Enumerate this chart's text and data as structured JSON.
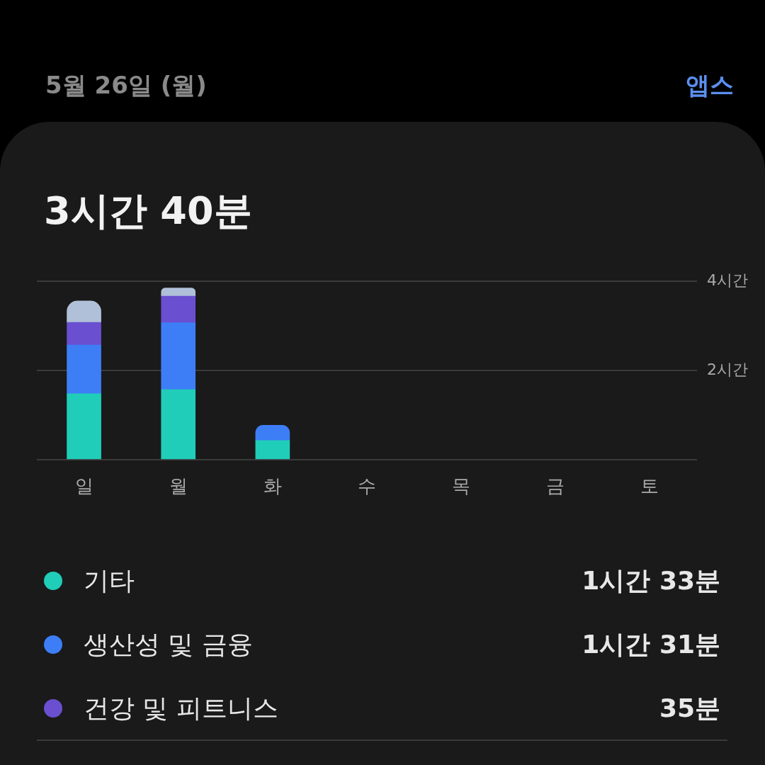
{
  "chart_data": {
    "type": "bar",
    "title": "3시간 40분",
    "subtitle": "5월 26일 (월)",
    "annotations": [
      "앱스",
      "1시간 33분",
      "1시간 31분",
      "35분"
    ],
    "categories": [
      "일",
      "월",
      "화",
      "수",
      "목",
      "금",
      "토"
    ],
    "stacked": true,
    "grid": "y",
    "legend": "bottom",
    "ylim": [
      0,
      4
    ],
    "yticks": [
      {
        "value": 0,
        "label": null
      },
      {
        "value": 2,
        "label": "2시간"
      },
      {
        "value": 4,
        "label": "4시간"
      }
    ],
    "series": [
      {
        "name": "기타",
        "color": "#20cdb8",
        "values": [
          1.48,
          1.57,
          0.43,
          null,
          null,
          null,
          null
        ]
      },
      {
        "name": "생산성 및 금융",
        "color": "#3d7ef7",
        "values": [
          1.09,
          1.5,
          0.34,
          null,
          null,
          null,
          null
        ]
      },
      {
        "name": "건강 및 피트니스",
        "color": "#6a4fd0",
        "values": [
          0.51,
          0.6,
          null,
          null,
          null,
          null,
          null
        ]
      },
      {
        "color": "#b0c0d8",
        "values": [
          0.48,
          0.18,
          null,
          null,
          null,
          null,
          null
        ]
      }
    ]
  }
}
